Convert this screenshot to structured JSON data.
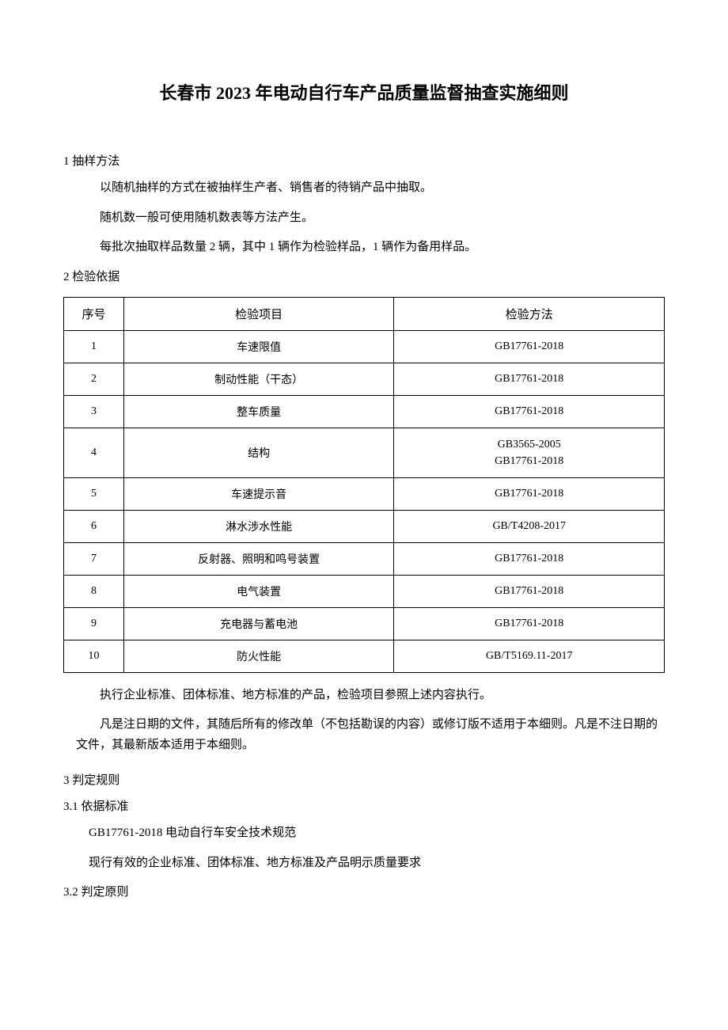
{
  "title": "长春市 2023 年电动自行车产品质量监督抽查实施细则",
  "section1": {
    "heading": "1 抽样方法",
    "p1": "以随机抽样的方式在被抽样生产者、销售者的待销产品中抽取。",
    "p2": "随机数一般可使用随机数表等方法产生。",
    "p3": "每批次抽取样品数量 2 辆，其中 1 辆作为检验样品，1 辆作为备用样品。"
  },
  "section2": {
    "heading": "2 检验依据",
    "table": {
      "headers": {
        "seq": "序号",
        "item": "检验项目",
        "method": "检验方法"
      },
      "rows": [
        {
          "seq": "1",
          "item": "车速限值",
          "method": "GB17761-2018"
        },
        {
          "seq": "2",
          "item": "制动性能（干态）",
          "method": "GB17761-2018"
        },
        {
          "seq": "3",
          "item": "整车质量",
          "method": "GB17761-2018"
        },
        {
          "seq": "4",
          "item": "结构",
          "method": "GB3565-2005\nGB17761-2018"
        },
        {
          "seq": "5",
          "item": "车速提示音",
          "method": "GB17761-2018"
        },
        {
          "seq": "6",
          "item": "淋水涉水性能",
          "method": "GB/T4208-2017"
        },
        {
          "seq": "7",
          "item": "反射器、照明和鸣号装置",
          "method": "GB17761-2018"
        },
        {
          "seq": "8",
          "item": "电气装置",
          "method": "GB17761-2018"
        },
        {
          "seq": "9",
          "item": "充电器与蓄电池",
          "method": "GB17761-2018"
        },
        {
          "seq": "10",
          "item": "防火性能",
          "method": "GB/T5169.11-2017"
        }
      ]
    },
    "p1": "执行企业标准、团体标准、地方标准的产品，检验项目参照上述内容执行。",
    "p2": "凡是注日期的文件，其随后所有的修改单（不包括勘误的内容）或修订版不适用于本细则。凡是不注日期的文件，其最新版本适用于本细则。"
  },
  "section3": {
    "heading": "3 判定规则",
    "sub1": {
      "heading": "3.1 依据标准",
      "p1": "GB17761-2018 电动自行车安全技术规范",
      "p2": "现行有效的企业标准、团体标准、地方标准及产品明示质量要求"
    },
    "sub2": {
      "heading": "3.2 判定原则"
    }
  }
}
